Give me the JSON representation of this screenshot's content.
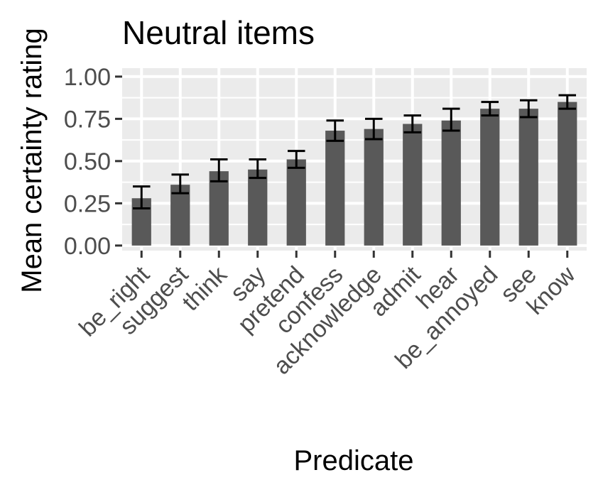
{
  "chart_data": {
    "type": "bar",
    "title": "Neutral items",
    "xlabel": "Predicate",
    "ylabel": "Mean certainty rating",
    "categories": [
      "be_right",
      "suggest",
      "think",
      "say",
      "pretend",
      "confess",
      "acknowledge",
      "admit",
      "hear",
      "be_annoyed",
      "see",
      "know"
    ],
    "values": [
      0.28,
      0.36,
      0.44,
      0.45,
      0.51,
      0.68,
      0.69,
      0.72,
      0.74,
      0.81,
      0.81,
      0.85
    ],
    "error_lower": [
      0.22,
      0.31,
      0.38,
      0.4,
      0.46,
      0.62,
      0.63,
      0.67,
      0.68,
      0.77,
      0.76,
      0.81
    ],
    "error_upper": [
      0.35,
      0.42,
      0.51,
      0.51,
      0.56,
      0.74,
      0.75,
      0.77,
      0.81,
      0.85,
      0.86,
      0.89
    ],
    "ylim": [
      -0.03,
      1.05
    ],
    "yticks": [
      0.0,
      0.25,
      0.5,
      0.75,
      1.0
    ],
    "ytick_labels": [
      "0.00",
      "0.25",
      "0.50",
      "0.75",
      "1.00"
    ],
    "grid": true,
    "colors": {
      "bar": "#595959",
      "panel": "#ebebeb",
      "grid": "#ffffff",
      "error_bar": "#000000",
      "tick": "#333333"
    }
  }
}
